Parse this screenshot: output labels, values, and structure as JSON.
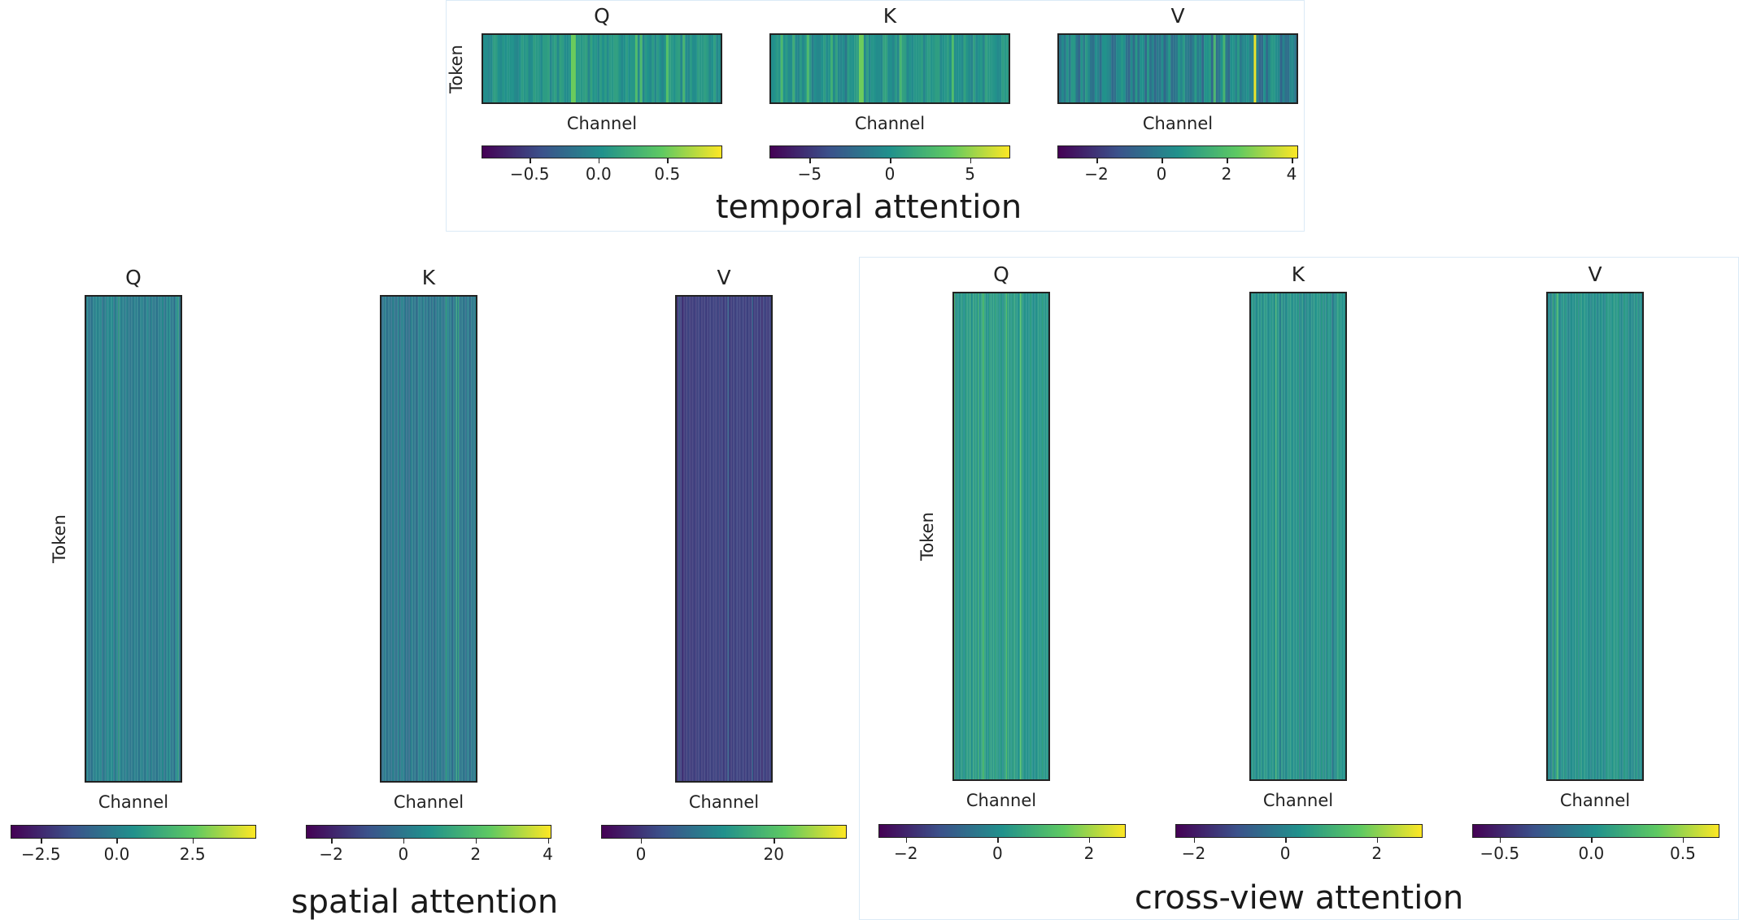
{
  "figure": {
    "colormap": [
      "#440154",
      "#3b528b",
      "#21918c",
      "#5ec962",
      "#fde725"
    ],
    "groups": [
      {
        "id": "temporal",
        "title": "temporal attention"
      },
      {
        "id": "spatial",
        "title": "spatial attention"
      },
      {
        "id": "cross",
        "title": "cross-view attention"
      }
    ]
  },
  "chart_data": [
    {
      "type": "heatmap",
      "group": "temporal attention",
      "title": "Q",
      "xlabel": "Channel",
      "ylabel": "Token",
      "colorbar": {
        "range": [
          -0.85,
          0.9
        ],
        "ticks": [
          -0.5,
          0.0,
          0.5
        ],
        "tick_labels": [
          "−0.5",
          "0.0",
          "0.5"
        ]
      },
      "base_value": 0.05,
      "notes": "dominant teal with a few bright vertical stripes"
    },
    {
      "type": "heatmap",
      "group": "temporal attention",
      "title": "K",
      "xlabel": "Channel",
      "ylabel": "",
      "colorbar": {
        "range": [
          -7.5,
          7.5
        ],
        "ticks": [
          -5,
          0,
          5
        ],
        "tick_labels": [
          "−5",
          "0",
          "5"
        ]
      },
      "base_value": 0.2,
      "notes": "dominant teal with bright outlier channels"
    },
    {
      "type": "heatmap",
      "group": "temporal attention",
      "title": "V",
      "xlabel": "Channel",
      "ylabel": "",
      "colorbar": {
        "range": [
          -3.2,
          4.2
        ],
        "ticks": [
          -2,
          0,
          2,
          4
        ],
        "tick_labels": [
          "−2",
          "0",
          "2",
          "4"
        ]
      },
      "base_value": 0.0,
      "notes": "mixed blue/teal noise with one bright channel"
    },
    {
      "type": "heatmap",
      "group": "spatial attention",
      "title": "Q",
      "xlabel": "Channel",
      "ylabel": "Token",
      "colorbar": {
        "range": [
          -3.5,
          4.6
        ],
        "ticks": [
          -2.5,
          0.0,
          2.5
        ],
        "tick_labels": [
          "−2.5",
          "0.0",
          "2.5"
        ]
      },
      "base_value": 0.0,
      "notes": "uniform teal with faint vertical stripes"
    },
    {
      "type": "heatmap",
      "group": "spatial attention",
      "title": "K",
      "xlabel": "Channel",
      "ylabel": "",
      "colorbar": {
        "range": [
          -2.7,
          4.1
        ],
        "ticks": [
          -2,
          0,
          2,
          4
        ],
        "tick_labels": [
          "−2",
          "0",
          "2",
          "4"
        ]
      },
      "base_value": 0.0,
      "notes": "uniform teal with faint vertical stripes"
    },
    {
      "type": "heatmap",
      "group": "spatial attention",
      "title": "V",
      "xlabel": "Channel",
      "ylabel": "",
      "colorbar": {
        "range": [
          -6,
          31
        ],
        "ticks": [
          0,
          20
        ],
        "tick_labels": [
          "0",
          "20"
        ]
      },
      "base_value": 1.0,
      "notes": "nearly uniform blue"
    },
    {
      "type": "heatmap",
      "group": "cross-view attention",
      "title": "Q",
      "xlabel": "Channel",
      "ylabel": "Token",
      "colorbar": {
        "range": [
          -2.6,
          2.8
        ],
        "ticks": [
          -2,
          0,
          2
        ],
        "tick_labels": [
          "−2",
          "0",
          "2"
        ]
      },
      "base_value": 0.3,
      "notes": "teal with green vertical stripes"
    },
    {
      "type": "heatmap",
      "group": "cross-view attention",
      "title": "K",
      "xlabel": "Channel",
      "ylabel": "",
      "colorbar": {
        "range": [
          -2.4,
          3.0
        ],
        "ticks": [
          -2,
          0,
          2
        ],
        "tick_labels": [
          "−2",
          "0",
          "2"
        ]
      },
      "base_value": 0.3,
      "notes": "teal with green vertical stripes"
    },
    {
      "type": "heatmap",
      "group": "cross-view attention",
      "title": "V",
      "xlabel": "Channel",
      "ylabel": "",
      "colorbar": {
        "range": [
          -0.65,
          0.7
        ],
        "ticks": [
          -0.5,
          0.0,
          0.5
        ],
        "tick_labels": [
          "−0.5",
          "0.0",
          "0.5"
        ]
      },
      "base_value": 0.02,
      "notes": "uniform teal"
    }
  ]
}
